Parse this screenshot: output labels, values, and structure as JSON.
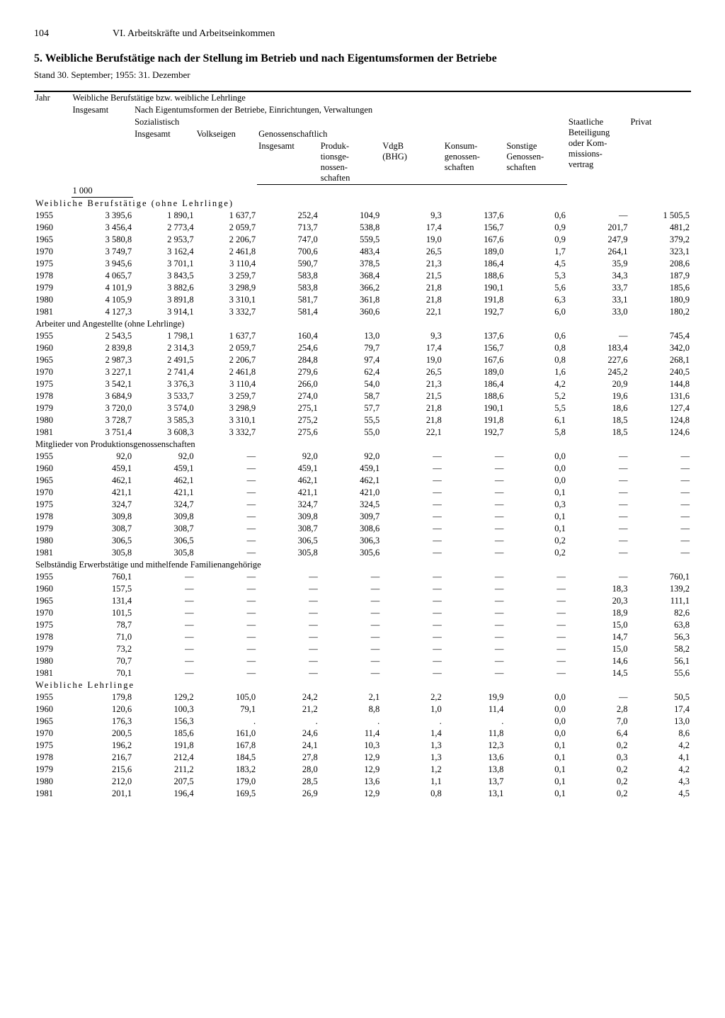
{
  "page_number": "104",
  "running_title": "VI. Arbeitskräfte und Arbeitseinkommen",
  "title": "5. Weibliche Berufstätige nach der Stellung im Betrieb und nach Eigentumsformen der Betriebe",
  "subtitle": "Stand 30. September; 1955: 31. Dezember",
  "head": {
    "jahr": "Jahr",
    "wbl": "Weibliche Berufstätige bzw. weibliche Lehrlinge",
    "insgesamt": "Insgesamt",
    "nach_eigen": "Nach Eigentumsformen der Betriebe, Einrichtungen, Verwaltungen",
    "sozialistisch": "Sozialistisch",
    "volkseigen": "Volkseigen",
    "genoss": "Genossenschaftlich",
    "prod": "Produk-\ntionsge-\nnossen-\nschaften",
    "vdgb": "VdgB\n(BHG)",
    "konsum": "Konsum-\ngenossen-\nschaften",
    "sonst": "Sonstige\nGenossen-\nschaften",
    "staatl": "Staatliche\nBeteiligung\noder Kom-\nmissions-\nvertrag",
    "privat": "Privat",
    "unit": "1 000"
  },
  "sections": [
    {
      "label": "Weibliche Berufstätige (ohne Lehrlinge)",
      "letterspaced": true,
      "rows": [
        [
          "1955",
          "3 395,6",
          "1 890,1",
          "1 637,7",
          "252,4",
          "104,9",
          "9,3",
          "137,6",
          "0,6",
          "—",
          "1 505,5"
        ],
        [
          "1960",
          "3 456,4",
          "2 773,4",
          "2 059,7",
          "713,7",
          "538,8",
          "17,4",
          "156,7",
          "0,9",
          "201,7",
          "481,2"
        ],
        [
          "1965",
          "3 580,8",
          "2 953,7",
          "2 206,7",
          "747,0",
          "559,5",
          "19,0",
          "167,6",
          "0,9",
          "247,9",
          "379,2"
        ],
        [
          "1970",
          "3 749,7",
          "3 162,4",
          "2 461,8",
          "700,6",
          "483,4",
          "26,5",
          "189,0",
          "1,7",
          "264,1",
          "323,1"
        ],
        [
          "1975",
          "3 945,6",
          "3 701,1",
          "3 110,4",
          "590,7",
          "378,5",
          "21,3",
          "186,4",
          "4,5",
          "35,9",
          "208,6"
        ],
        [
          "1978",
          "4 065,7",
          "3 843,5",
          "3 259,7",
          "583,8",
          "368,4",
          "21,5",
          "188,6",
          "5,3",
          "34,3",
          "187,9"
        ],
        [
          "1979",
          "4 101,9",
          "3 882,6",
          "3 298,9",
          "583,8",
          "366,2",
          "21,8",
          "190,1",
          "5,6",
          "33,7",
          "185,6"
        ],
        [
          "1980",
          "4 105,9",
          "3 891,8",
          "3 310,1",
          "581,7",
          "361,8",
          "21,8",
          "191,8",
          "6,3",
          "33,1",
          "180,9"
        ],
        [
          "1981",
          "4 127,3",
          "3 914,1",
          "3 332,7",
          "581,4",
          "360,6",
          "22,1",
          "192,7",
          "6,0",
          "33,0",
          "180,2"
        ]
      ]
    },
    {
      "label": "Arbeiter und Angestellte (ohne Lehrlinge)",
      "rows": [
        [
          "1955",
          "2 543,5",
          "1 798,1",
          "1 637,7",
          "160,4",
          "13,0",
          "9,3",
          "137,6",
          "0,6",
          "—",
          "745,4"
        ],
        [
          "1960",
          "2 839,8",
          "2 314,3",
          "2 059,7",
          "254,6",
          "79,7",
          "17,4",
          "156,7",
          "0,8",
          "183,4",
          "342,0"
        ],
        [
          "1965",
          "2 987,3",
          "2 491,5",
          "2 206,7",
          "284,8",
          "97,4",
          "19,0",
          "167,6",
          "0,8",
          "227,6",
          "268,1"
        ],
        [
          "1970",
          "3 227,1",
          "2 741,4",
          "2 461,8",
          "279,6",
          "62,4",
          "26,5",
          "189,0",
          "1,6",
          "245,2",
          "240,5"
        ],
        [
          "1975",
          "3 542,1",
          "3 376,3",
          "3 110,4",
          "266,0",
          "54,0",
          "21,3",
          "186,4",
          "4,2",
          "20,9",
          "144,8"
        ],
        [
          "1978",
          "3 684,9",
          "3 533,7",
          "3 259,7",
          "274,0",
          "58,7",
          "21,5",
          "188,6",
          "5,2",
          "19,6",
          "131,6"
        ],
        [
          "1979",
          "3 720,0",
          "3 574,0",
          "3 298,9",
          "275,1",
          "57,7",
          "21,8",
          "190,1",
          "5,5",
          "18,6",
          "127,4"
        ],
        [
          "1980",
          "3 728,7",
          "3 585,3",
          "3 310,1",
          "275,2",
          "55,5",
          "21,8",
          "191,8",
          "6,1",
          "18,5",
          "124,8"
        ],
        [
          "1981",
          "3 751,4",
          "3 608,3",
          "3 332,7",
          "275,6",
          "55,0",
          "22,1",
          "192,7",
          "5,8",
          "18,5",
          "124,6"
        ]
      ]
    },
    {
      "label": "Mitglieder von Produktionsgenossenschaften",
      "rows": [
        [
          "1955",
          "92,0",
          "92,0",
          "—",
          "92,0",
          "92,0",
          "—",
          "—",
          "0,0",
          "—",
          "—"
        ],
        [
          "1960",
          "459,1",
          "459,1",
          "—",
          "459,1",
          "459,1",
          "—",
          "—",
          "0,0",
          "—",
          "—"
        ],
        [
          "1965",
          "462,1",
          "462,1",
          "—",
          "462,1",
          "462,1",
          "—",
          "—",
          "0,0",
          "—",
          "—"
        ],
        [
          "1970",
          "421,1",
          "421,1",
          "—",
          "421,1",
          "421,0",
          "—",
          "—",
          "0,1",
          "—",
          "—"
        ],
        [
          "1975",
          "324,7",
          "324,7",
          "—",
          "324,7",
          "324,5",
          "—",
          "—",
          "0,3",
          "—",
          "—"
        ],
        [
          "1978",
          "309,8",
          "309,8",
          "—",
          "309,8",
          "309,7",
          "—",
          "—",
          "0,1",
          "—",
          "—"
        ],
        [
          "1979",
          "308,7",
          "308,7",
          "—",
          "308,7",
          "308,6",
          "—",
          "—",
          "0,1",
          "—",
          "—"
        ],
        [
          "1980",
          "306,5",
          "306,5",
          "—",
          "306,5",
          "306,3",
          "—",
          "—",
          "0,2",
          "—",
          "—"
        ],
        [
          "1981",
          "305,8",
          "305,8",
          "—",
          "305,8",
          "305,6",
          "—",
          "—",
          "0,2",
          "—",
          "—"
        ]
      ]
    },
    {
      "label": "Selbständig Erwerbstätige und mithelfende Familienangehörige",
      "rows": [
        [
          "1955",
          "760,1",
          "—",
          "—",
          "—",
          "—",
          "—",
          "—",
          "—",
          "—",
          "760,1"
        ],
        [
          "1960",
          "157,5",
          "—",
          "—",
          "—",
          "—",
          "—",
          "—",
          "—",
          "18,3",
          "139,2"
        ],
        [
          "1965",
          "131,4",
          "—",
          "—",
          "—",
          "—",
          "—",
          "—",
          "—",
          "20,3",
          "111,1"
        ],
        [
          "1970",
          "101,5",
          "—",
          "—",
          "—",
          "—",
          "—",
          "—",
          "—",
          "18,9",
          "82,6"
        ],
        [
          "1975",
          "78,7",
          "—",
          "—",
          "—",
          "—",
          "—",
          "—",
          "—",
          "15,0",
          "63,8"
        ],
        [
          "1978",
          "71,0",
          "—",
          "—",
          "—",
          "—",
          "—",
          "—",
          "—",
          "14,7",
          "56,3"
        ],
        [
          "1979",
          "73,2",
          "—",
          "—",
          "—",
          "—",
          "—",
          "—",
          "—",
          "15,0",
          "58,2"
        ],
        [
          "1980",
          "70,7",
          "—",
          "—",
          "—",
          "—",
          "—",
          "—",
          "—",
          "14,6",
          "56,1"
        ],
        [
          "1981",
          "70,1",
          "—",
          "—",
          "—",
          "—",
          "—",
          "—",
          "—",
          "14,5",
          "55,6"
        ]
      ]
    },
    {
      "label": "Weibliche Lehrlinge",
      "letterspaced": true,
      "rows": [
        [
          "1955",
          "179,8",
          "129,2",
          "105,0",
          "24,2",
          "2,1",
          "2,2",
          "19,9",
          "0,0",
          "—",
          "50,5"
        ],
        [
          "1960",
          "120,6",
          "100,3",
          "79,1",
          "21,2",
          "8,8",
          "1,0",
          "11,4",
          "0,0",
          "2,8",
          "17,4"
        ],
        [
          "1965",
          "176,3",
          "156,3",
          ".",
          ".",
          ".",
          ".",
          ".",
          "0,0",
          "7,0",
          "13,0"
        ],
        [
          "1970",
          "200,5",
          "185,6",
          "161,0",
          "24,6",
          "11,4",
          "1,4",
          "11,8",
          "0,0",
          "6,4",
          "8,6"
        ],
        [
          "1975",
          "196,2",
          "191,8",
          "167,8",
          "24,1",
          "10,3",
          "1,3",
          "12,3",
          "0,1",
          "0,2",
          "4,2"
        ],
        [
          "1978",
          "216,7",
          "212,4",
          "184,5",
          "27,8",
          "12,9",
          "1,3",
          "13,6",
          "0,1",
          "0,3",
          "4,1"
        ],
        [
          "1979",
          "215,6",
          "211,2",
          "183,2",
          "28,0",
          "12,9",
          "1,2",
          "13,8",
          "0,1",
          "0,2",
          "4,2"
        ],
        [
          "1980",
          "212,0",
          "207,5",
          "179,0",
          "28,5",
          "13,6",
          "1,1",
          "13,7",
          "0,1",
          "0,2",
          "4,3"
        ],
        [
          "1981",
          "201,1",
          "196,4",
          "169,5",
          "26,9",
          "12,9",
          "0,8",
          "13,1",
          "0,1",
          "0,2",
          "4,5"
        ]
      ]
    }
  ]
}
